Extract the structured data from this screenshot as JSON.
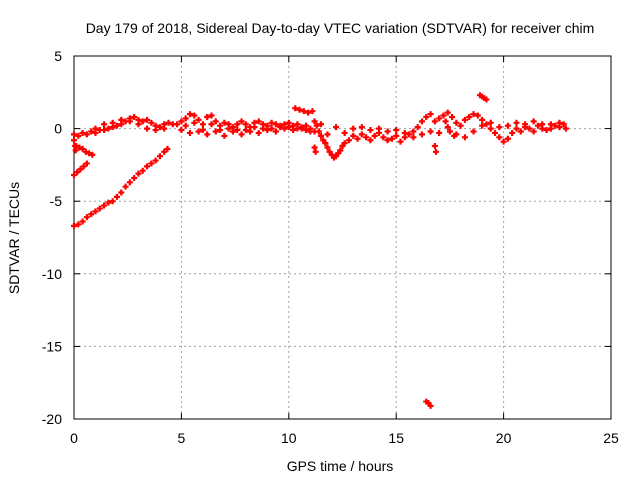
{
  "chart_data": {
    "type": "scatter",
    "title": "Day 179 of 2018, Sidereal Day-to-day VTEC variation (SDTVAR) for receiver chim",
    "xlabel": "GPS time / hours",
    "ylabel": "SDTVAR / TECUs",
    "xlim": [
      0,
      25
    ],
    "ylim": [
      -20,
      5
    ],
    "xticks": [
      0,
      5,
      10,
      15,
      20,
      25
    ],
    "yticks": [
      -20,
      -15,
      -10,
      -5,
      0,
      5
    ],
    "grid": true,
    "marker": "+",
    "series": [
      {
        "name": "SDTVAR",
        "color": "#ff0000",
        "points": [
          [
            0.0,
            -6.7
          ],
          [
            0.2,
            -6.6
          ],
          [
            0.4,
            -6.4
          ],
          [
            0.6,
            -6.1
          ],
          [
            0.8,
            -5.9
          ],
          [
            1.0,
            -5.7
          ],
          [
            1.2,
            -5.5
          ],
          [
            1.4,
            -5.3
          ],
          [
            1.6,
            -5.1
          ],
          [
            1.8,
            -5.0
          ],
          [
            2.0,
            -4.7
          ],
          [
            2.2,
            -4.4
          ],
          [
            2.4,
            -4.0
          ],
          [
            2.6,
            -3.7
          ],
          [
            2.8,
            -3.4
          ],
          [
            3.0,
            -3.1
          ],
          [
            3.2,
            -2.9
          ],
          [
            3.4,
            -2.6
          ],
          [
            3.6,
            -2.4
          ],
          [
            3.8,
            -2.2
          ],
          [
            4.0,
            -1.9
          ],
          [
            4.2,
            -1.6
          ],
          [
            4.35,
            -1.4
          ],
          [
            0.0,
            -3.2
          ],
          [
            0.15,
            -3.0
          ],
          [
            0.3,
            -2.8
          ],
          [
            0.45,
            -2.6
          ],
          [
            0.6,
            -2.4
          ],
          [
            0.1,
            -1.2
          ],
          [
            0.25,
            -1.3
          ],
          [
            0.4,
            -1.4
          ],
          [
            0.55,
            -1.6
          ],
          [
            0.7,
            -1.7
          ],
          [
            0.85,
            -1.8
          ],
          [
            0.0,
            -0.8
          ],
          [
            0.05,
            -1.2
          ],
          [
            0.08,
            -1.5
          ],
          [
            0.0,
            -0.4
          ],
          [
            0.2,
            -0.5
          ],
          [
            0.4,
            -0.3
          ],
          [
            0.6,
            -0.4
          ],
          [
            0.8,
            -0.2
          ],
          [
            1.0,
            -0.3
          ],
          [
            1.2,
            -0.1
          ],
          [
            1.4,
            -0.1
          ],
          [
            1.6,
            0.0
          ],
          [
            1.8,
            0.1
          ],
          [
            2.0,
            0.2
          ],
          [
            2.2,
            0.3
          ],
          [
            2.4,
            0.5
          ],
          [
            2.6,
            0.7
          ],
          [
            2.8,
            0.8
          ],
          [
            3.0,
            0.6
          ],
          [
            3.2,
            0.5
          ],
          [
            3.4,
            0.6
          ],
          [
            3.6,
            0.4
          ],
          [
            3.8,
            0.2
          ],
          [
            4.0,
            0.1
          ],
          [
            4.2,
            0.3
          ],
          [
            4.4,
            0.4
          ],
          [
            4.6,
            0.3
          ],
          [
            1.0,
            0.0
          ],
          [
            1.4,
            0.3
          ],
          [
            1.8,
            0.4
          ],
          [
            2.2,
            0.6
          ],
          [
            2.6,
            0.5
          ],
          [
            3.0,
            0.3
          ],
          [
            3.4,
            0.0
          ],
          [
            3.8,
            -0.1
          ],
          [
            4.2,
            0.0
          ],
          [
            4.8,
            0.3
          ],
          [
            5.0,
            0.5
          ],
          [
            5.2,
            0.7
          ],
          [
            5.4,
            1.0
          ],
          [
            5.6,
            0.9
          ],
          [
            5.8,
            0.6
          ],
          [
            6.0,
            0.3
          ],
          [
            6.2,
            0.8
          ],
          [
            6.4,
            0.9
          ],
          [
            6.6,
            0.5
          ],
          [
            6.8,
            0.2
          ],
          [
            7.0,
            0.4
          ],
          [
            7.2,
            0.3
          ],
          [
            7.4,
            0.1
          ],
          [
            7.6,
            0.3
          ],
          [
            7.8,
            0.5
          ],
          [
            8.0,
            0.3
          ],
          [
            8.2,
            0.1
          ],
          [
            8.4,
            0.4
          ],
          [
            8.6,
            0.5
          ],
          [
            8.8,
            0.3
          ],
          [
            9.0,
            0.2
          ],
          [
            9.2,
            0.4
          ],
          [
            9.4,
            0.3
          ],
          [
            9.6,
            0.1
          ],
          [
            9.8,
            0.3
          ],
          [
            10.0,
            0.4
          ],
          [
            10.2,
            0.2
          ],
          [
            10.4,
            0.3
          ],
          [
            10.6,
            0.1
          ],
          [
            10.8,
            0.2
          ],
          [
            11.0,
            0.0
          ],
          [
            5.0,
            -0.1
          ],
          [
            5.4,
            -0.3
          ],
          [
            5.8,
            -0.2
          ],
          [
            6.2,
            -0.4
          ],
          [
            6.6,
            -0.2
          ],
          [
            7.0,
            -0.5
          ],
          [
            7.4,
            -0.2
          ],
          [
            7.8,
            -0.4
          ],
          [
            8.2,
            -0.2
          ],
          [
            8.6,
            -0.3
          ],
          [
            9.0,
            -0.1
          ],
          [
            9.4,
            -0.2
          ],
          [
            9.8,
            0.0
          ],
          [
            10.2,
            -0.1
          ],
          [
            10.6,
            0.0
          ],
          [
            11.0,
            -0.2
          ],
          [
            5.2,
            0.2
          ],
          [
            5.6,
            0.4
          ],
          [
            6.0,
            -0.1
          ],
          [
            6.4,
            0.3
          ],
          [
            6.8,
            -0.1
          ],
          [
            7.2,
            0.0
          ],
          [
            7.6,
            -0.1
          ],
          [
            8.0,
            -0.1
          ],
          [
            8.4,
            0.1
          ],
          [
            8.8,
            0.0
          ],
          [
            9.2,
            0.0
          ],
          [
            9.6,
            0.2
          ],
          [
            10.0,
            0.1
          ],
          [
            10.4,
            0.0
          ],
          [
            10.8,
            -0.1
          ],
          [
            10.3,
            1.4
          ],
          [
            10.5,
            1.3
          ],
          [
            10.7,
            1.2
          ],
          [
            10.9,
            1.1
          ],
          [
            11.1,
            1.2
          ],
          [
            11.2,
            0.5
          ],
          [
            11.3,
            0.2
          ],
          [
            11.4,
            -0.2
          ],
          [
            11.5,
            -0.5
          ],
          [
            11.6,
            -0.8
          ],
          [
            11.7,
            -1.0
          ],
          [
            11.8,
            -1.3
          ],
          [
            11.9,
            -1.6
          ],
          [
            12.0,
            -1.8
          ],
          [
            12.1,
            -2.0
          ],
          [
            12.2,
            -1.9
          ],
          [
            12.3,
            -1.7
          ],
          [
            12.4,
            -1.5
          ],
          [
            12.5,
            -1.2
          ],
          [
            12.6,
            -1.0
          ],
          [
            12.8,
            -0.8
          ],
          [
            13.0,
            -0.5
          ],
          [
            13.2,
            -0.7
          ],
          [
            13.4,
            -0.4
          ],
          [
            13.6,
            -0.6
          ],
          [
            13.8,
            -0.8
          ],
          [
            14.0,
            -0.5
          ],
          [
            14.2,
            -0.3
          ],
          [
            14.4,
            -0.6
          ],
          [
            14.6,
            -0.8
          ],
          [
            14.8,
            -0.7
          ],
          [
            15.0,
            -0.5
          ],
          [
            15.2,
            -0.9
          ],
          [
            15.4,
            -0.6
          ],
          [
            15.6,
            -0.4
          ],
          [
            15.8,
            -0.2
          ],
          [
            16.0,
            0.1
          ],
          [
            16.2,
            0.5
          ],
          [
            16.4,
            0.8
          ],
          [
            16.6,
            1.0
          ],
          [
            16.8,
            0.5
          ],
          [
            17.0,
            0.7
          ],
          [
            17.2,
            0.9
          ],
          [
            17.4,
            1.1
          ],
          [
            17.6,
            0.8
          ],
          [
            17.8,
            0.4
          ],
          [
            18.0,
            0.2
          ],
          [
            18.2,
            0.6
          ],
          [
            18.4,
            0.8
          ],
          [
            18.6,
            1.0
          ],
          [
            18.8,
            0.9
          ],
          [
            19.0,
            0.6
          ],
          [
            19.2,
            0.3
          ],
          [
            19.4,
            0.0
          ],
          [
            19.6,
            -0.3
          ],
          [
            19.8,
            -0.6
          ],
          [
            20.0,
            -0.9
          ],
          [
            20.2,
            -0.7
          ],
          [
            20.4,
            -0.3
          ],
          [
            20.6,
            0.0
          ],
          [
            20.8,
            -0.2
          ],
          [
            21.0,
            0.1
          ],
          [
            21.2,
            0.0
          ],
          [
            21.4,
            -0.2
          ],
          [
            21.6,
            0.2
          ],
          [
            21.8,
            0.0
          ],
          [
            22.0,
            -0.1
          ],
          [
            22.2,
            0.3
          ],
          [
            22.4,
            0.2
          ],
          [
            22.6,
            0.1
          ],
          [
            22.8,
            0.3
          ],
          [
            22.9,
            0.0
          ],
          [
            11.2,
            -0.2
          ],
          [
            11.5,
            0.3
          ],
          [
            11.8,
            -0.4
          ],
          [
            12.2,
            0.1
          ],
          [
            12.6,
            -0.3
          ],
          [
            13.0,
            0.0
          ],
          [
            13.4,
            0.1
          ],
          [
            13.8,
            -0.1
          ],
          [
            14.2,
            0.0
          ],
          [
            14.6,
            -0.2
          ],
          [
            15.0,
            -0.1
          ],
          [
            15.4,
            -0.3
          ],
          [
            15.8,
            -0.6
          ],
          [
            16.2,
            -0.4
          ],
          [
            16.6,
            -0.2
          ],
          [
            17.0,
            -0.3
          ],
          [
            17.4,
            0.1
          ],
          [
            17.8,
            -0.4
          ],
          [
            18.2,
            -0.6
          ],
          [
            18.6,
            -0.2
          ],
          [
            19.0,
            0.2
          ],
          [
            19.4,
            0.4
          ],
          [
            19.8,
            0.1
          ],
          [
            20.2,
            0.2
          ],
          [
            20.6,
            0.4
          ],
          [
            21.0,
            0.3
          ],
          [
            21.4,
            0.5
          ],
          [
            21.8,
            0.3
          ],
          [
            22.2,
            0.0
          ],
          [
            22.6,
            0.4
          ],
          [
            11.2,
            -1.3
          ],
          [
            11.25,
            -1.6
          ],
          [
            16.8,
            -1.2
          ],
          [
            16.85,
            -1.6
          ],
          [
            17.3,
            0.5
          ],
          [
            17.5,
            -0.2
          ],
          [
            17.7,
            -0.5
          ],
          [
            18.9,
            2.3
          ],
          [
            19.0,
            2.2
          ],
          [
            19.1,
            2.1
          ],
          [
            19.2,
            2.0
          ],
          [
            16.4,
            -18.8
          ],
          [
            16.5,
            -18.9
          ],
          [
            16.6,
            -19.1
          ]
        ]
      }
    ]
  }
}
